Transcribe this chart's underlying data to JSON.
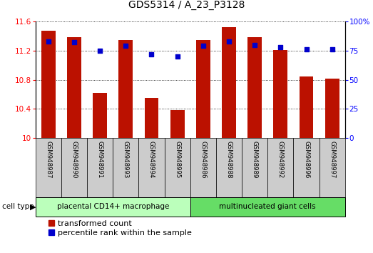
{
  "title": "GDS5314 / A_23_P3128",
  "samples": [
    "GSM948987",
    "GSM948990",
    "GSM948991",
    "GSM948993",
    "GSM948994",
    "GSM948995",
    "GSM948986",
    "GSM948988",
    "GSM948989",
    "GSM948992",
    "GSM948996",
    "GSM948997"
  ],
  "bar_values": [
    11.47,
    11.38,
    10.62,
    11.35,
    10.55,
    10.38,
    11.35,
    11.52,
    11.38,
    11.21,
    10.84,
    10.81
  ],
  "dot_values_pct": [
    83,
    82,
    75,
    79,
    72,
    70,
    79,
    83,
    80,
    78,
    76,
    76
  ],
  "bar_color": "#bb1100",
  "dot_color": "#0000cc",
  "ylim_left": [
    10.0,
    11.6
  ],
  "ylim_right": [
    0,
    100
  ],
  "yticks_left": [
    10.0,
    10.4,
    10.8,
    11.2,
    11.6
  ],
  "yticks_right": [
    0,
    25,
    50,
    75,
    100
  ],
  "ytick_labels_left": [
    "10",
    "10.4",
    "10.8",
    "11.2",
    "11.6"
  ],
  "ytick_labels_right": [
    "0",
    "25",
    "50",
    "75",
    "100%"
  ],
  "group1_label": "placental CD14+ macrophage",
  "group2_label": "multinucleated giant cells",
  "group1_count": 6,
  "group2_count": 6,
  "cell_type_label": "cell type",
  "legend_bar_label": "transformed count",
  "legend_dot_label": "percentile rank within the sample",
  "group1_color": "#bbffbb",
  "group2_color": "#66dd66",
  "sample_box_color": "#cccccc",
  "bar_bottom": 10.0,
  "figw": 5.23,
  "figh": 3.54
}
